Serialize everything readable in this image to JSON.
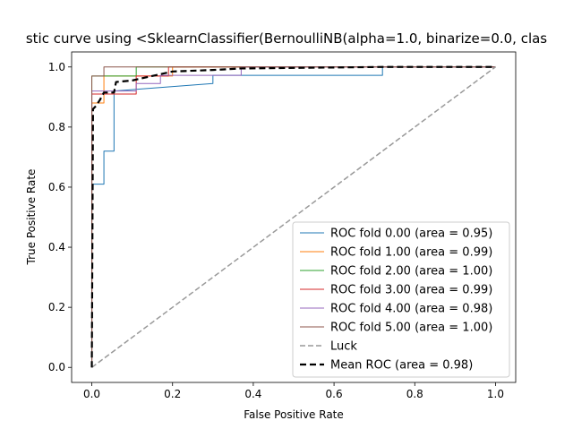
{
  "chart_data": {
    "type": "line",
    "title": "stic curve using <SklearnClassifier(BernoulliNB(alpha=1.0, binarize=0.0, clas",
    "xlabel": "False Positive Rate",
    "ylabel": "True Positive Rate",
    "xlim": [
      -0.05,
      1.05
    ],
    "ylim": [
      -0.05,
      1.05
    ],
    "xticks": [
      0.0,
      0.2,
      0.4,
      0.6,
      0.8,
      1.0
    ],
    "yticks": [
      0.0,
      0.2,
      0.4,
      0.6,
      0.8,
      1.0
    ],
    "xtick_labels": [
      "0.0",
      "0.2",
      "0.4",
      "0.6",
      "0.8",
      "1.0"
    ],
    "ytick_labels": [
      "0.0",
      "0.2",
      "0.4",
      "0.6",
      "0.8",
      "1.0"
    ],
    "grid": false,
    "legend_position": "lower-right",
    "series": [
      {
        "name": "ROC fold 0.00 (area = 0.95)",
        "color": "#1f77b4",
        "style": "solid",
        "x": [
          0.0,
          0.0,
          0.03,
          0.03,
          0.055,
          0.055,
          0.3,
          0.3,
          0.72,
          0.72,
          1.0
        ],
        "y": [
          0.0,
          0.61,
          0.61,
          0.72,
          0.72,
          0.92,
          0.945,
          0.972,
          0.972,
          1.0,
          1.0
        ]
      },
      {
        "name": "ROC fold 1.00 (area = 0.99)",
        "color": "#ff7f0e",
        "style": "solid",
        "x": [
          0.0,
          0.0,
          0.03,
          0.03,
          0.2,
          0.2,
          1.0
        ],
        "y": [
          0.0,
          0.88,
          0.88,
          0.97,
          0.97,
          1.0,
          1.0
        ]
      },
      {
        "name": "ROC fold 2.00 (area = 1.00)",
        "color": "#2ca02c",
        "style": "solid",
        "x": [
          0.0,
          0.0,
          0.11,
          0.11,
          1.0
        ],
        "y": [
          0.0,
          0.97,
          0.97,
          1.0,
          1.0
        ]
      },
      {
        "name": "ROC fold 3.00 (area = 0.99)",
        "color": "#d62728",
        "style": "solid",
        "x": [
          0.0,
          0.0,
          0.11,
          0.11,
          0.19,
          0.19,
          1.0
        ],
        "y": [
          0.0,
          0.91,
          0.91,
          0.97,
          0.97,
          1.0,
          1.0
        ]
      },
      {
        "name": "ROC fold 4.00 (area = 0.98)",
        "color": "#9467bd",
        "style": "solid",
        "x": [
          0.0,
          0.0,
          0.11,
          0.11,
          0.17,
          0.17,
          0.37,
          0.37,
          1.0
        ],
        "y": [
          0.0,
          0.92,
          0.92,
          0.945,
          0.945,
          0.972,
          0.972,
          1.0,
          1.0
        ]
      },
      {
        "name": "ROC fold 5.00 (area = 1.00)",
        "color": "#8c564b",
        "style": "solid",
        "x": [
          0.0,
          0.0,
          0.03,
          0.03,
          1.0
        ],
        "y": [
          0.0,
          0.97,
          0.97,
          1.0,
          1.0
        ]
      },
      {
        "name": "Luck",
        "color": "#999999",
        "style": "dashed",
        "x": [
          0.0,
          1.0
        ],
        "y": [
          0.0,
          1.0
        ]
      },
      {
        "name": "Mean ROC (area = 0.98)",
        "color": "#000000",
        "style": "dashed-bold",
        "x": [
          0.0,
          0.003,
          0.01,
          0.02,
          0.03,
          0.055,
          0.06,
          0.1,
          0.2,
          0.3,
          0.37,
          0.72,
          1.0
        ],
        "y": [
          0.0,
          0.86,
          0.87,
          0.89,
          0.915,
          0.915,
          0.95,
          0.955,
          0.985,
          0.99,
          0.995,
          1.0,
          1.0
        ]
      }
    ]
  }
}
